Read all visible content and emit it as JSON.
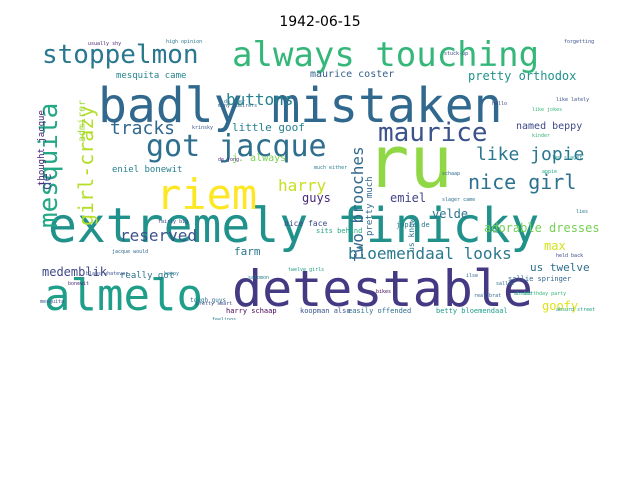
{
  "title": "1942-06-15",
  "cloud": {
    "words": [
      {
        "text": "badly mistaken",
        "color": "#31688e"
      },
      {
        "text": "extremely finicky",
        "color": "#21918c"
      },
      {
        "text": "detestable",
        "color": "#443983"
      },
      {
        "text": "almelo",
        "color": "#1f9e89"
      },
      {
        "text": "ru",
        "color": "#8fd744"
      },
      {
        "text": "riem",
        "color": "#fde725"
      },
      {
        "text": "always touching",
        "color": "#35b779"
      },
      {
        "text": "stoppelmon",
        "color": "#2a788e"
      },
      {
        "text": "got jacque",
        "color": "#2e6e8e"
      },
      {
        "text": "maurice",
        "color": "#3b528b"
      },
      {
        "text": "mesquita",
        "color": "#22a884"
      },
      {
        "text": "girl-crazy",
        "color": "#b5de2b"
      },
      {
        "text": "buttons",
        "color": "#26828e"
      },
      {
        "text": "tracks",
        "color": "#31688e"
      },
      {
        "text": "harry",
        "color": "#c8e020"
      },
      {
        "text": "like jopie",
        "color": "#2a788e"
      },
      {
        "text": "nice girl",
        "color": "#2c728e"
      },
      {
        "text": "two brooches",
        "color": "#31688e"
      },
      {
        "text": "reserved",
        "color": "#3b528b"
      },
      {
        "text": "bloemendaal looks",
        "color": "#2a788e"
      },
      {
        "text": "maurice coster",
        "color": "#35608d"
      },
      {
        "text": "pretty orthodox",
        "color": "#21918c"
      },
      {
        "text": "named beppy",
        "color": "#3e4989"
      },
      {
        "text": "little goof",
        "color": "#26828e"
      },
      {
        "text": "adorable dresses",
        "color": "#75d054"
      },
      {
        "text": "emiel",
        "color": "#414487"
      },
      {
        "text": "velde",
        "color": "#2c728e"
      },
      {
        "text": "us twelve",
        "color": "#2e6e8e"
      },
      {
        "text": "max",
        "color": "#d2e21b"
      },
      {
        "text": "goofy",
        "color": "#dde318"
      },
      {
        "text": "medemblik",
        "color": "#3e4989"
      },
      {
        "text": "guys",
        "color": "#482878"
      },
      {
        "text": "farm",
        "color": "#2a788e"
      },
      {
        "text": "de",
        "color": "#3b528b"
      },
      {
        "text": "thought jacque",
        "color": "#482475"
      },
      {
        "text": "j. always",
        "color": "#7ad151"
      },
      {
        "text": "eniel bonewit",
        "color": "#26828e"
      },
      {
        "text": "admirer",
        "color": "#9fda3a"
      },
      {
        "text": "really got",
        "color": "#2c728e"
      },
      {
        "text": "pretty much",
        "color": "#31688e"
      },
      {
        "text": "us know",
        "color": "#2a788e"
      },
      {
        "text": "harry schaap",
        "color": "#440154"
      },
      {
        "text": "koopman also",
        "color": "#3b528b"
      },
      {
        "text": "easily offended",
        "color": "#2e6e8e"
      },
      {
        "text": "betty bloemendaal",
        "color": "#1f9e89"
      },
      {
        "text": "sits behind",
        "color": "#22a884"
      },
      {
        "text": "nice face",
        "color": "#3e4989"
      },
      {
        "text": "jopie de",
        "color": "#2a788e"
      },
      {
        "text": "sallie springer",
        "color": "#32648e"
      },
      {
        "text": "high opinion",
        "color": "#2a788e"
      },
      {
        "text": "usually shy",
        "color": "#482878"
      },
      {
        "text": "forgetting",
        "color": "#3b528b"
      },
      {
        "text": "mesquita came",
        "color": "#26828e"
      },
      {
        "text": "twelve girls",
        "color": "#1fa187"
      },
      {
        "text": "birthday party",
        "color": "#35b779"
      },
      {
        "text": "tough guys",
        "color": "#2c728e"
      },
      {
        "text": "jacque would",
        "color": "#31688e"
      },
      {
        "text": "absurd street",
        "color": "#1f9e89"
      },
      {
        "text": "fairly big",
        "color": "#3e4989"
      },
      {
        "text": "de jong",
        "color": "#482878"
      },
      {
        "text": "de beer",
        "color": "#2a788e"
      },
      {
        "text": "many admirers",
        "color": "#31688e"
      },
      {
        "text": "much either",
        "color": "#26828e"
      },
      {
        "text": "held back",
        "color": "#3e4989"
      },
      {
        "text": "slager came",
        "color": "#2c728e"
      },
      {
        "text": "leo slager",
        "color": "#21918c"
      },
      {
        "text": "like lately",
        "color": "#3b528b"
      },
      {
        "text": "like jokes",
        "color": "#35b779"
      },
      {
        "text": "appie",
        "color": "#22a884"
      },
      {
        "text": "bikes",
        "color": "#440154"
      },
      {
        "text": "ilse",
        "color": "#31688e"
      },
      {
        "text": "beppy",
        "color": "#2a788e"
      },
      {
        "text": "krinsky",
        "color": "#3b528b"
      },
      {
        "text": "schaap",
        "color": "#2e6e8e"
      },
      {
        "text": "stuck-up",
        "color": "#3e4989"
      },
      {
        "text": "hello",
        "color": "#414487"
      },
      {
        "text": "salomon",
        "color": "#26828e"
      },
      {
        "text": "mesquita",
        "color": "#3b528b"
      },
      {
        "text": "sallie",
        "color": "#2c728e"
      },
      {
        "text": "rob",
        "color": "#21918c"
      },
      {
        "text": "kinder",
        "color": "#35b779"
      },
      {
        "text": "absurd",
        "color": "#1fa187"
      },
      {
        "text": "real brat",
        "color": "#31688e"
      },
      {
        "text": "pretty smart",
        "color": "#3e4989"
      },
      {
        "text": "lies",
        "color": "#2a788e"
      },
      {
        "text": "bonewit",
        "color": "#482878"
      },
      {
        "text": "feelings",
        "color": "#26828e"
      },
      {
        "text": "blabs whatever",
        "color": "#3b528b"
      }
    ]
  }
}
